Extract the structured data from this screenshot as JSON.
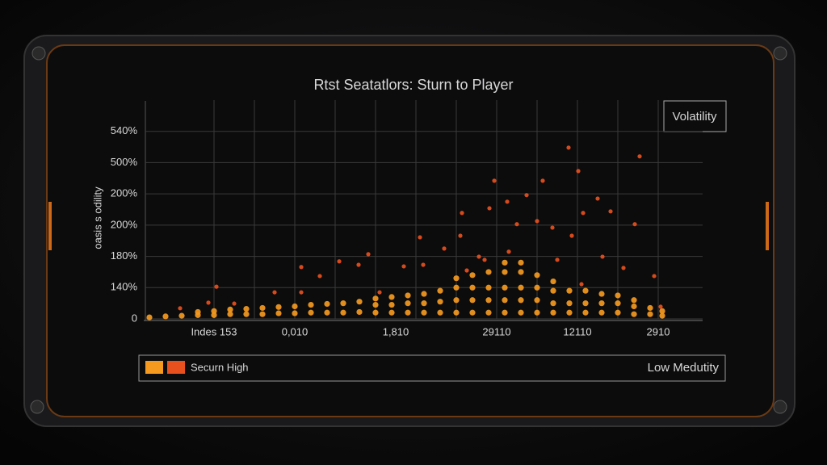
{
  "chart_data": {
    "type": "scatter",
    "title": "Rtst Seatatlors: Sturn to Player",
    "ylabel": "oasis s odility",
    "legend_title": "Volatility",
    "xlim": [
      0,
      14
    ],
    "ylim": [
      0,
      7
    ],
    "xticks": [
      {
        "value": 2,
        "label": "Indes 153"
      },
      {
        "value": 3,
        "label": null
      },
      {
        "value": 4,
        "label": "0,010"
      },
      {
        "value": 5,
        "label": null
      },
      {
        "value": 6,
        "label": null
      },
      {
        "value": 6.5,
        "label": "1,810"
      },
      {
        "value": 7,
        "label": null
      },
      {
        "value": 8,
        "label": null
      },
      {
        "value": 9,
        "label": "29110"
      },
      {
        "value": 10,
        "label": null
      },
      {
        "value": 11,
        "label": "12110"
      },
      {
        "value": 12,
        "label": null
      },
      {
        "value": 13,
        "label": "2910"
      }
    ],
    "yticks": [
      0,
      {
        "value": 1,
        "label": "140%"
      },
      {
        "value": 2,
        "label": "180%"
      },
      {
        "value": 3,
        "label": "200%"
      },
      {
        "value": 4,
        "label": "200%"
      },
      {
        "value": 5,
        "label": "500%"
      },
      {
        "value": 6,
        "label": "540%"
      }
    ],
    "grid": true,
    "series": [
      {
        "name": "Securn High",
        "color": "#f59a1f",
        "x": [
          0.4,
          0.8,
          1.2,
          1.6,
          1.6,
          2.0,
          2.0,
          2.4,
          2.4,
          2.8,
          2.8,
          3.2,
          3.2,
          3.6,
          3.6,
          4.0,
          4.0,
          4.4,
          4.4,
          4.8,
          4.8,
          5.2,
          5.2,
          5.6,
          5.6,
          6.0,
          6.0,
          6.0,
          6.4,
          6.4,
          6.4,
          6.8,
          6.8,
          6.8,
          7.2,
          7.2,
          7.2,
          7.6,
          7.6,
          7.6,
          8.0,
          8.0,
          8.0,
          8.0,
          8.4,
          8.4,
          8.4,
          8.4,
          8.8,
          8.8,
          8.8,
          8.8,
          9.2,
          9.2,
          9.2,
          9.2,
          9.2,
          9.6,
          9.6,
          9.6,
          9.6,
          9.6,
          10.0,
          10.0,
          10.0,
          10.0,
          10.4,
          10.4,
          10.4,
          10.4,
          10.8,
          10.8,
          10.8,
          11.2,
          11.2,
          11.2,
          11.6,
          11.6,
          11.6,
          12.0,
          12.0,
          12.0,
          12.4,
          12.4,
          12.4,
          12.8,
          12.8,
          13.1,
          13.1
        ],
        "values": [
          0.05,
          0.08,
          0.1,
          0.12,
          0.22,
          0.12,
          0.25,
          0.15,
          0.3,
          0.15,
          0.32,
          0.15,
          0.35,
          0.18,
          0.38,
          0.18,
          0.4,
          0.2,
          0.45,
          0.2,
          0.48,
          0.2,
          0.5,
          0.22,
          0.55,
          0.2,
          0.45,
          0.65,
          0.2,
          0.45,
          0.7,
          0.2,
          0.5,
          0.75,
          0.2,
          0.5,
          0.8,
          0.2,
          0.55,
          0.9,
          0.2,
          0.6,
          1.0,
          1.3,
          0.2,
          0.6,
          1.0,
          1.4,
          0.2,
          0.6,
          1.0,
          1.5,
          0.2,
          0.6,
          1.0,
          1.5,
          1.8,
          0.2,
          0.6,
          1.0,
          1.5,
          1.8,
          0.2,
          0.6,
          1.0,
          1.4,
          0.2,
          0.5,
          0.9,
          1.2,
          0.2,
          0.5,
          0.9,
          0.2,
          0.5,
          0.9,
          0.2,
          0.5,
          0.8,
          0.2,
          0.5,
          0.75,
          0.15,
          0.4,
          0.6,
          0.15,
          0.35,
          0.1,
          0.25
        ]
      },
      {
        "name": "Low Medutity",
        "color": "#e8501d",
        "x": [
          2.06,
          1.16,
          1.86,
          2.5,
          3.5,
          4.16,
          4.16,
          4.62,
          5.1,
          5.58,
          5.82,
          6.1,
          6.7,
          7.1,
          7.18,
          7.7,
          8.14,
          8.1,
          8.26,
          8.56,
          8.82,
          8.94,
          9.26,
          9.5,
          9.74,
          10.0,
          10.14,
          10.38,
          10.78,
          11.02,
          10.86,
          11.14,
          11.5,
          11.82,
          11.62,
          12.14,
          12.54,
          12.42,
          12.9,
          13.06,
          8.7,
          9.3,
          10.5,
          11.1
        ],
        "values": [
          1.03,
          0.34,
          0.52,
          0.49,
          0.85,
          1.66,
          0.85,
          1.37,
          1.84,
          1.73,
          2.07,
          0.85,
          1.68,
          2.61,
          1.73,
          2.25,
          3.39,
          2.66,
          1.55,
          1.99,
          3.54,
          4.42,
          3.75,
          3.03,
          3.96,
          3.13,
          4.42,
          2.92,
          5.48,
          4.73,
          2.66,
          3.39,
          3.85,
          3.44,
          1.99,
          1.63,
          5.2,
          3.03,
          1.37,
          0.39,
          1.89,
          2.15,
          1.89,
          1.11
        ]
      }
    ]
  }
}
